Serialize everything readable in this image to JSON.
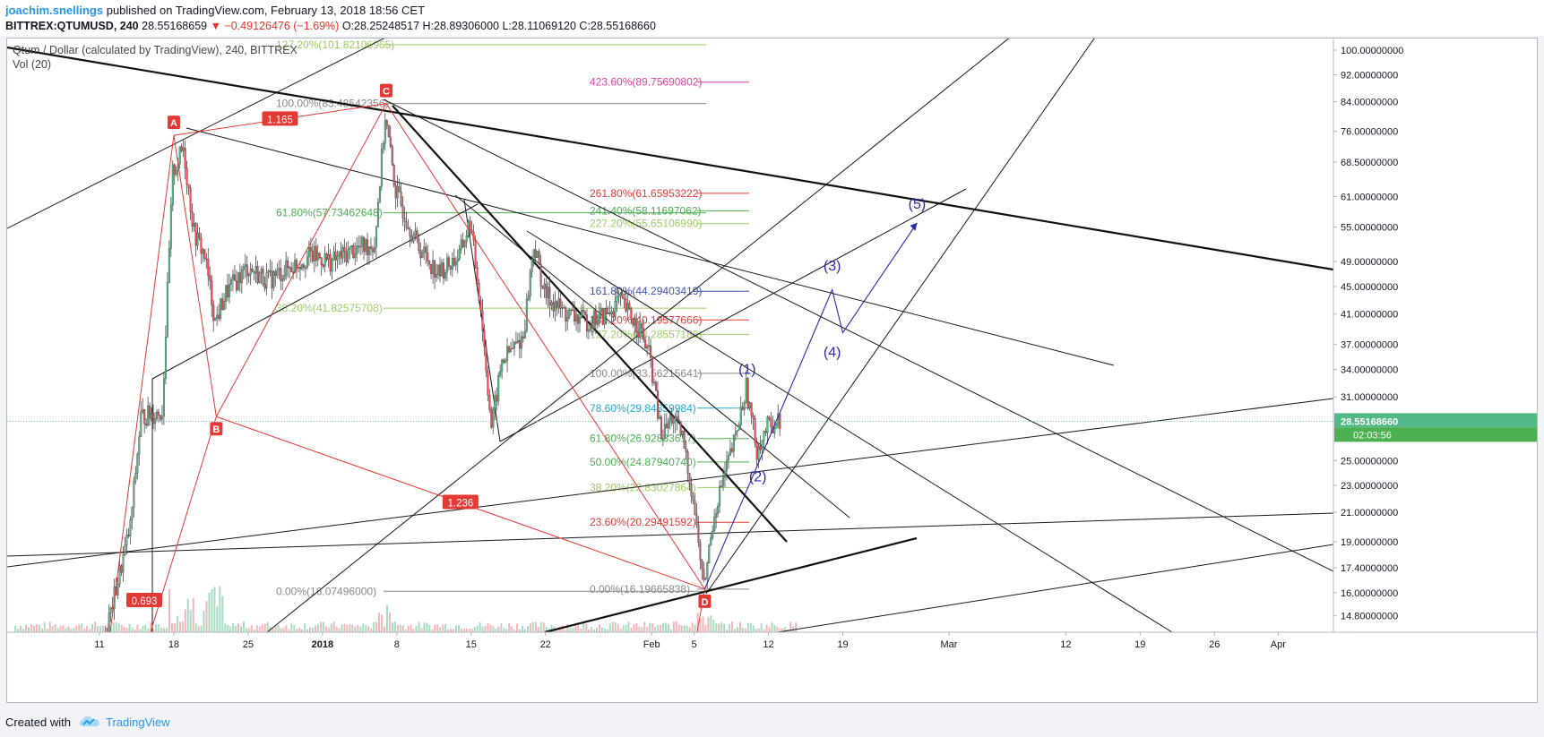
{
  "header": {
    "author": "joachim.snellings",
    "published_text": "published on TradingView.com, February 13, 2018 18:56 CET",
    "symbol": "BITTREX:QTUMUSD, 240",
    "last": "28.55168659",
    "change": "▼ −0.49126476 (−1.69%)",
    "ohlc": "O:28.25248517 H:28.89306000 L:28.11069120 C:28.55168660"
  },
  "legend": {
    "title": "Qtum / Dollar (calculated by TradingView), 240, BITTREX",
    "volume": "Vol (20)"
  },
  "footer": {
    "created_with": "Created with",
    "brand": "TradingView"
  },
  "colors": {
    "up": "#53b987",
    "down": "#eb4d5c",
    "drawing_red": "#e53935",
    "wave_blue": "#2a2aa8",
    "price_label": "#53b987",
    "time_label": "#4caf50"
  },
  "chart_data": {
    "type": "candlestick",
    "y_axis": {
      "scale": "log",
      "ylim": [
        14.0,
        104.0
      ],
      "ticks": [
        "100.00000000",
        "92.00000000",
        "84.00000000",
        "76.00000000",
        "68.50000000",
        "61.00000000",
        "55.00000000",
        "49.00000000",
        "45.00000000",
        "41.00000000",
        "37.00000000",
        "34.00000000",
        "31.00000000",
        "25.00000000",
        "23.00000000",
        "21.00000000",
        "19.00000000",
        "17.40000000",
        "16.00000000",
        "14.80000000"
      ]
    },
    "x_axis": {
      "ticks": [
        "11",
        "18",
        "25",
        "2018",
        "8",
        "15",
        "22",
        "Feb",
        "5",
        "12",
        "19",
        "Mar",
        "12",
        "19",
        "26",
        "Apr"
      ]
    },
    "current_price": "28.55168660",
    "countdown": "02:03:56",
    "price_path": [
      {
        "date": "2017-12-11",
        "close": 12.5
      },
      {
        "date": "2017-12-14",
        "close": 20.0
      },
      {
        "date": "2017-12-15",
        "close": 29.0
      },
      {
        "date": "2017-12-17",
        "close": 29.5
      },
      {
        "date": "2017-12-18",
        "close": 66.0
      },
      {
        "date": "2017-12-19",
        "close": 72.0
      },
      {
        "date": "2017-12-20",
        "close": 54.0
      },
      {
        "date": "2017-12-21",
        "close": 50.0
      },
      {
        "date": "2017-12-22",
        "close": 40.0
      },
      {
        "date": "2017-12-23",
        "close": 44.0
      },
      {
        "date": "2017-12-25",
        "close": 48.0
      },
      {
        "date": "2017-12-27",
        "close": 46.0
      },
      {
        "date": "2017-12-29",
        "close": 48.0
      },
      {
        "date": "2017-12-31",
        "close": 50.0
      },
      {
        "date": "2018-01-02",
        "close": 49.0
      },
      {
        "date": "2018-01-04",
        "close": 51.0
      },
      {
        "date": "2018-01-06",
        "close": 52.0
      },
      {
        "date": "2018-01-07",
        "close": 80.0
      },
      {
        "date": "2018-01-08",
        "close": 62.0
      },
      {
        "date": "2018-01-10",
        "close": 52.0
      },
      {
        "date": "2018-01-12",
        "close": 47.0
      },
      {
        "date": "2018-01-14",
        "close": 50.0
      },
      {
        "date": "2018-01-15",
        "close": 56.0
      },
      {
        "date": "2018-01-16",
        "close": 42.0
      },
      {
        "date": "2018-01-17",
        "close": 28.0
      },
      {
        "date": "2018-01-18",
        "close": 35.0
      },
      {
        "date": "2018-01-20",
        "close": 38.0
      },
      {
        "date": "2018-01-21",
        "close": 52.0
      },
      {
        "date": "2018-01-22",
        "close": 44.0
      },
      {
        "date": "2018-01-24",
        "close": 41.0
      },
      {
        "date": "2018-01-26",
        "close": 40.0
      },
      {
        "date": "2018-01-28",
        "close": 41.0
      },
      {
        "date": "2018-01-29",
        "close": 43.0
      },
      {
        "date": "2018-01-31",
        "close": 39.0
      },
      {
        "date": "2018-02-01",
        "close": 35.0
      },
      {
        "date": "2018-02-02",
        "close": 27.0
      },
      {
        "date": "2018-02-03",
        "close": 29.0
      },
      {
        "date": "2018-02-04",
        "close": 27.0
      },
      {
        "date": "2018-02-05",
        "close": 22.0
      },
      {
        "date": "2018-02-06",
        "close": 16.3
      },
      {
        "date": "2018-02-07",
        "close": 21.0
      },
      {
        "date": "2018-02-08",
        "close": 24.0
      },
      {
        "date": "2018-02-09",
        "close": 27.0
      },
      {
        "date": "2018-02-10",
        "close": 32.0
      },
      {
        "date": "2018-02-11",
        "close": 26.0
      },
      {
        "date": "2018-02-12",
        "close": 28.0
      },
      {
        "date": "2018-02-13",
        "close": 28.55
      }
    ],
    "pattern_points": [
      {
        "label": "A",
        "date": "2017-12-18",
        "price": 75.0
      },
      {
        "label": "B",
        "date": "2017-12-22",
        "price": 29.0
      },
      {
        "label": "C",
        "date": "2018-01-07",
        "price": 83.48542356
      },
      {
        "label": "D",
        "date": "2018-02-06",
        "price": 16.19665838
      }
    ],
    "pattern_ratios": [
      "1.165",
      "1.236",
      "0.693"
    ],
    "wave_labels": [
      {
        "label": "(1)",
        "date": "2018-02-10",
        "price": 33.5
      },
      {
        "label": "(2)",
        "date": "2018-02-11",
        "price": 23.3
      },
      {
        "label": "(3)",
        "date": "2018-02-18",
        "price": 47.5
      },
      {
        "label": "(4)",
        "date": "2018-02-18",
        "price": 35.5
      },
      {
        "label": "(5)",
        "date": "2018-02-26",
        "price": 58.5
      }
    ],
    "wave_path": [
      {
        "date": "2018-02-06",
        "price": 16.2
      },
      {
        "date": "2018-02-18",
        "price": 44.5
      },
      {
        "date": "2018-02-19",
        "price": 38.5
      },
      {
        "date": "2018-02-26",
        "price": 55.8
      }
    ],
    "fib_levels": [
      {
        "label": "127.20%(101.82106965)",
        "price": 101.82106965,
        "color": "#9ccc65"
      },
      {
        "label": "100.00%(83.48542356)",
        "price": 83.48542356,
        "color": "#8a8a8a"
      },
      {
        "label": "61.80%(57.73462648)",
        "price": 57.73462648,
        "color": "#4caf50"
      },
      {
        "label": "38.20%(41.82575708)",
        "price": 41.82575708,
        "color": "#9ccc65"
      },
      {
        "label": "0.00%(16.07496000)",
        "price": 16.07496,
        "color": "#8a8a8a"
      },
      {
        "label": "423.60%(89.75690802)",
        "price": 89.75690802,
        "color": "#e040a0"
      },
      {
        "label": "261.80%(61.65953222)",
        "price": 61.65953222,
        "color": "#e53935"
      },
      {
        "label": "241.40%(58.11697062)",
        "price": 58.11697062,
        "color": "#4caf50"
      },
      {
        "label": "227.20%(55.65106990)",
        "price": 55.6510699,
        "color": "#9ccc65"
      },
      {
        "label": "161.80%(44.29403419)",
        "price": 44.29403419,
        "color": "#3f51b5"
      },
      {
        "label": "138.20%(40.19577666)",
        "price": 40.19577666,
        "color": "#e53935"
      },
      {
        "label": "127.20%(38.28557188)",
        "price": 38.28557188,
        "color": "#9ccc65"
      },
      {
        "label": "100.00%(33.56215641)",
        "price": 33.56215641,
        "color": "#8a8a8a"
      },
      {
        "label": "78.60%(29.84359984)",
        "price": 29.84359984,
        "color": "#26a6d1"
      },
      {
        "label": "61.80%(26.92833617)",
        "price": 26.92833617,
        "color": "#4caf50"
      },
      {
        "label": "50.00%(24.87940740)",
        "price": 24.8794074,
        "color": "#4caf50"
      },
      {
        "label": "38.20%(22.83027864)",
        "price": 22.83027864,
        "color": "#9ccc65"
      },
      {
        "label": "23.60%(20.29491592)",
        "price": 20.29491592,
        "color": "#e53935"
      },
      {
        "label": "0.00%(16.19665838)",
        "price": 16.19665838,
        "color": "#8a8a8a"
      }
    ]
  }
}
